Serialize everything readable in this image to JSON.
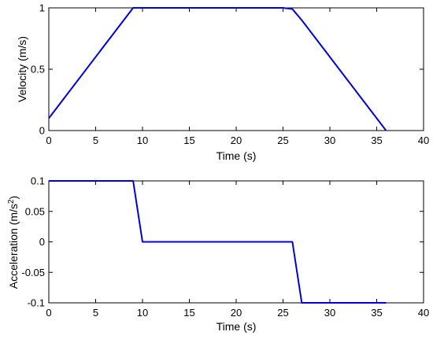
{
  "chart_data": [
    {
      "type": "line",
      "xlabel": "Time (s)",
      "ylabel": "Velocity (m/s)",
      "xlim": [
        0,
        40
      ],
      "ylim": [
        0,
        1
      ],
      "xticks": [
        0,
        5,
        10,
        15,
        20,
        25,
        30,
        35,
        40
      ],
      "yticks": [
        0,
        0.5,
        1
      ],
      "ytick_labels": [
        "0",
        "0.5",
        "1"
      ],
      "grid": false,
      "series": [
        {
          "color": "#0000dd",
          "x": [
            0,
            9,
            25,
            26,
            27,
            36
          ],
          "y": [
            0.1,
            1.0,
            1.0,
            0.99,
            0.9,
            0.0
          ]
        }
      ]
    },
    {
      "type": "line",
      "xlabel": "Time (s)",
      "ylabel": "Acceleration (m/s2)",
      "ylabel_main": "Acceleration (m/s",
      "ylabel_sup": "2",
      "ylabel_end": ")",
      "xlim": [
        0,
        40
      ],
      "ylim": [
        -0.1,
        0.1
      ],
      "xticks": [
        0,
        5,
        10,
        15,
        20,
        25,
        30,
        35,
        40
      ],
      "yticks": [
        -0.1,
        -0.05,
        0,
        0.05,
        0.1
      ],
      "ytick_labels": [
        "-0.1",
        "-0.05",
        "0",
        "0.05",
        "0.1"
      ],
      "grid": false,
      "series": [
        {
          "color": "#0000dd",
          "x": [
            0,
            9,
            10,
            26,
            27,
            36
          ],
          "y": [
            0.1,
            0.1,
            0,
            0,
            -0.1,
            -0.1
          ]
        }
      ]
    }
  ]
}
